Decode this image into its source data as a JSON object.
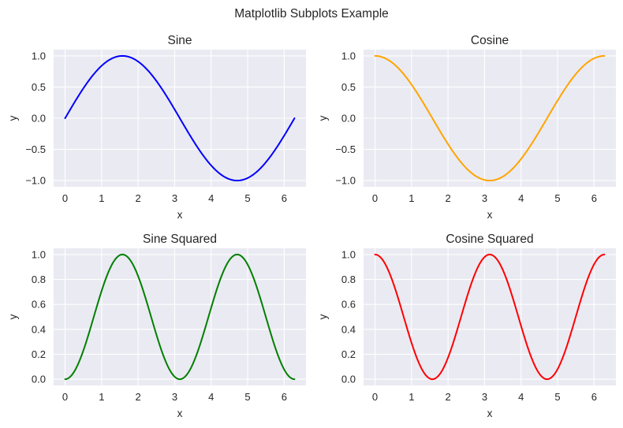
{
  "figure": {
    "title": "Matplotlib Subplots Example"
  },
  "chart_data": [
    {
      "type": "line",
      "title": "Sine",
      "xlabel": "x",
      "ylabel": "y",
      "function": "sin",
      "color": "#0000ff",
      "xlim": [
        -0.3142,
        6.5973
      ],
      "ylim": [
        -1.1,
        1.1
      ],
      "x_ticks": [
        0,
        1,
        2,
        3,
        4,
        5,
        6
      ],
      "x_tick_labels": [
        "0",
        "1",
        "2",
        "3",
        "4",
        "5",
        "6"
      ],
      "y_ticks": [
        1.0,
        0.5,
        0.0,
        -0.5,
        -1.0
      ],
      "y_tick_labels": [
        "1.0",
        "0.5",
        "0.0",
        "−0.5",
        "−1.0"
      ],
      "series": [
        {
          "x": [
            0,
            0.3307,
            0.6614,
            0.9921,
            1.3228,
            1.6535,
            1.9842,
            2.3149,
            2.6456,
            2.9762,
            3.3069,
            3.6376,
            3.9683,
            4.299,
            4.6297,
            4.9604,
            5.2911,
            5.6218,
            5.9525,
            6.2832
          ],
          "y": [
            0,
            0.3247,
            0.6142,
            0.8372,
            0.9694,
            0.9966,
            0.9158,
            0.7357,
            0.4759,
            0.1646,
            -0.1646,
            -0.4759,
            -0.7357,
            -0.9158,
            -0.9966,
            -0.9694,
            -0.8372,
            -0.6142,
            -0.3247,
            0
          ]
        }
      ]
    },
    {
      "type": "line",
      "title": "Cosine",
      "xlabel": "x",
      "ylabel": "y",
      "function": "cos",
      "color": "#ffa500",
      "xlim": [
        -0.3142,
        6.5973
      ],
      "ylim": [
        -1.1,
        1.1
      ],
      "x_ticks": [
        0,
        1,
        2,
        3,
        4,
        5,
        6
      ],
      "x_tick_labels": [
        "0",
        "1",
        "2",
        "3",
        "4",
        "5",
        "6"
      ],
      "y_ticks": [
        1.0,
        0.5,
        0.0,
        -0.5,
        -1.0
      ],
      "y_tick_labels": [
        "1.0",
        "0.5",
        "0.0",
        "−0.5",
        "−1.0"
      ],
      "series": [
        {
          "x": [
            0,
            0.3307,
            0.6614,
            0.9921,
            1.3228,
            1.6535,
            1.9842,
            2.3149,
            2.6456,
            2.9762,
            3.3069,
            3.6376,
            3.9683,
            4.299,
            4.6297,
            4.9604,
            5.2911,
            5.6218,
            5.9525,
            6.2832
          ],
          "y": [
            1,
            0.9458,
            0.7891,
            0.5469,
            0.2455,
            -0.0826,
            -0.4017,
            -0.6773,
            -0.8795,
            -0.9864,
            -0.9864,
            -0.8795,
            -0.6773,
            -0.4017,
            -0.0826,
            0.2455,
            0.5469,
            0.7891,
            0.9458,
            1
          ]
        }
      ]
    },
    {
      "type": "line",
      "title": "Sine Squared",
      "xlabel": "x",
      "ylabel": "y",
      "function": "sin2",
      "color": "#008000",
      "xlim": [
        -0.3142,
        6.5973
      ],
      "ylim": [
        -0.05,
        1.05
      ],
      "x_ticks": [
        0,
        1,
        2,
        3,
        4,
        5,
        6
      ],
      "x_tick_labels": [
        "0",
        "1",
        "2",
        "3",
        "4",
        "5",
        "6"
      ],
      "y_ticks": [
        1.0,
        0.8,
        0.6,
        0.4,
        0.2,
        0.0
      ],
      "y_tick_labels": [
        "1.0",
        "0.8",
        "0.6",
        "0.4",
        "0.2",
        "0.0"
      ],
      "series": [
        {
          "x": [
            0,
            0.3307,
            0.6614,
            0.9921,
            1.3228,
            1.6535,
            1.9842,
            2.3149,
            2.6456,
            2.9762,
            3.3069,
            3.6376,
            3.9683,
            4.299,
            4.6297,
            4.9604,
            5.2911,
            5.6218,
            5.9525,
            6.2832
          ],
          "y": [
            0,
            0.1054,
            0.3773,
            0.7009,
            0.9397,
            0.9932,
            0.8386,
            0.5413,
            0.2265,
            0.0271,
            0.0271,
            0.2265,
            0.5413,
            0.8386,
            0.9932,
            0.9397,
            0.7009,
            0.3773,
            0.1054,
            0
          ]
        }
      ]
    },
    {
      "type": "line",
      "title": "Cosine Squared",
      "xlabel": "x",
      "ylabel": "y",
      "function": "cos2",
      "color": "#ff0000",
      "xlim": [
        -0.3142,
        6.5973
      ],
      "ylim": [
        -0.05,
        1.05
      ],
      "x_ticks": [
        0,
        1,
        2,
        3,
        4,
        5,
        6
      ],
      "x_tick_labels": [
        "0",
        "1",
        "2",
        "3",
        "4",
        "5",
        "6"
      ],
      "y_ticks": [
        1.0,
        0.8,
        0.6,
        0.4,
        0.2,
        0.0
      ],
      "y_tick_labels": [
        "1.0",
        "0.8",
        "0.6",
        "0.4",
        "0.2",
        "0.0"
      ],
      "series": [
        {
          "x": [
            0,
            0.3307,
            0.6614,
            0.9921,
            1.3228,
            1.6535,
            1.9842,
            2.3149,
            2.6456,
            2.9762,
            3.3069,
            3.6376,
            3.9683,
            4.299,
            4.6297,
            4.9604,
            5.2911,
            5.6218,
            5.9525,
            6.2832
          ],
          "y": [
            1,
            0.8946,
            0.6227,
            0.2991,
            0.0603,
            0.0068,
            0.1614,
            0.4587,
            0.7735,
            0.9729,
            0.9729,
            0.7735,
            0.4587,
            0.1614,
            0.0068,
            0.0603,
            0.2991,
            0.6227,
            0.8946,
            1
          ]
        }
      ]
    }
  ]
}
